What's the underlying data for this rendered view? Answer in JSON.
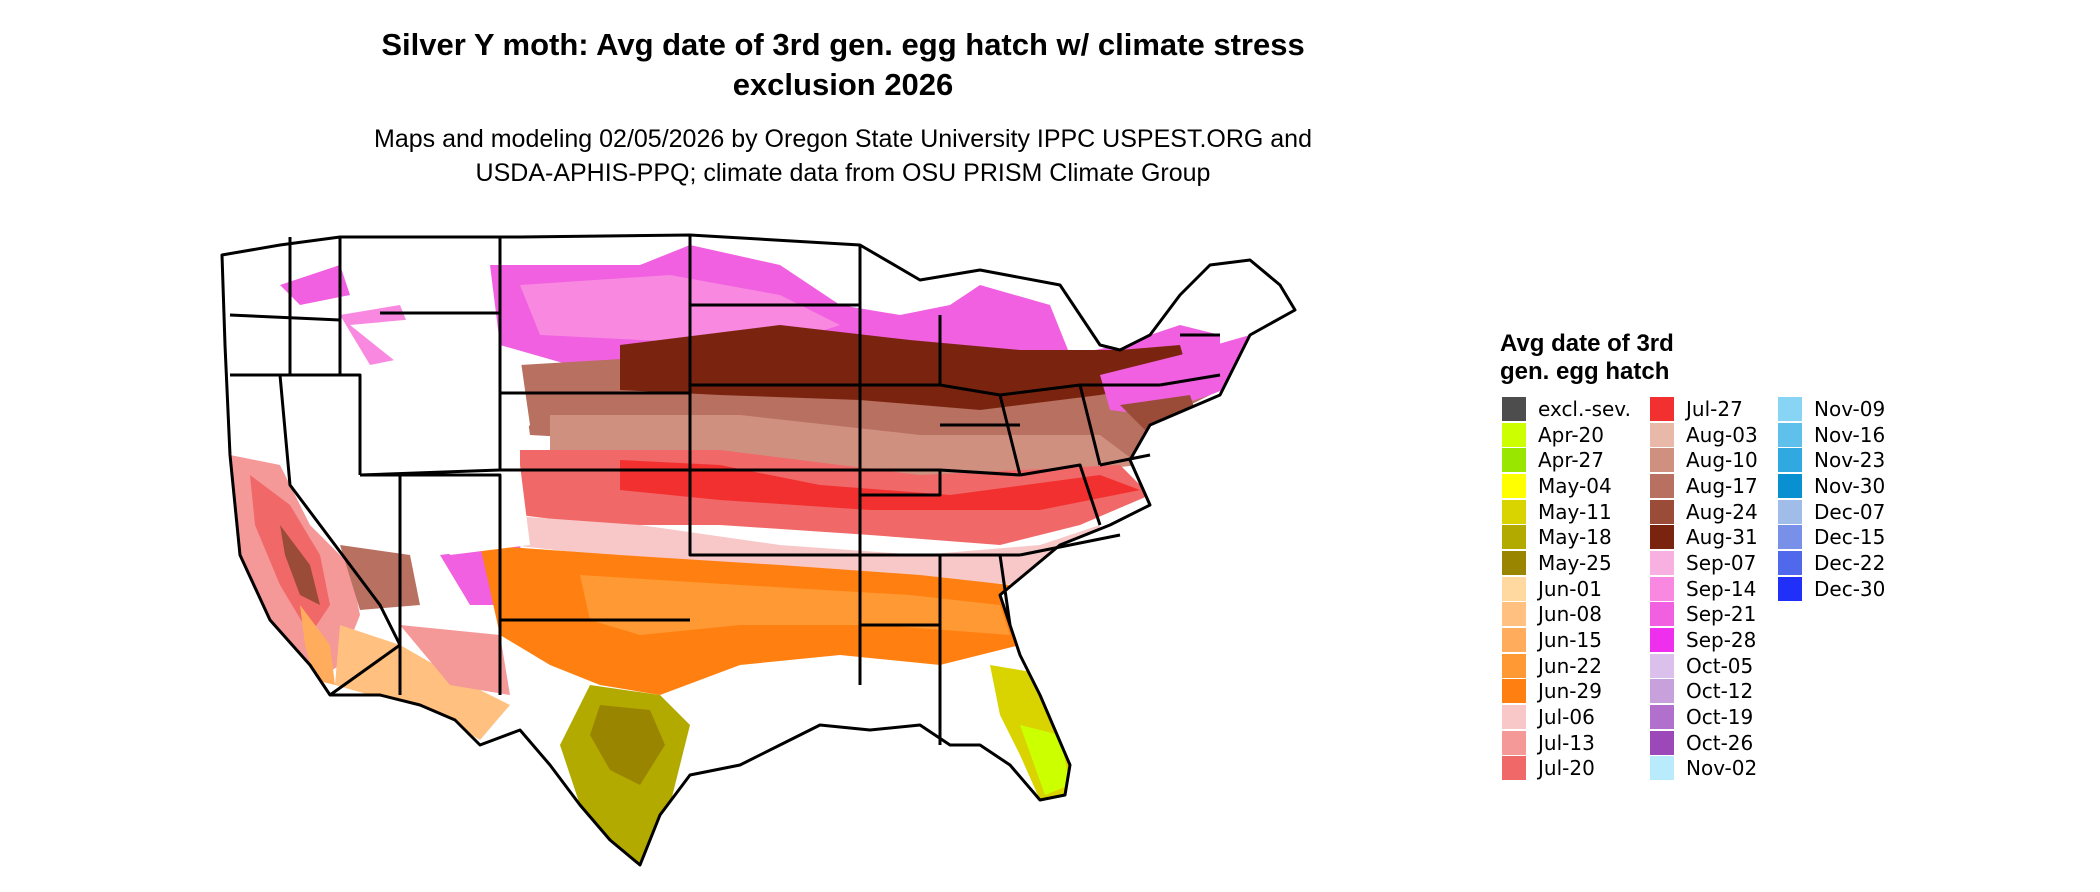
{
  "header": {
    "title_line1": "Silver Y moth: Avg date of 3rd gen. egg hatch w/ climate stress",
    "title_line2": "exclusion 2026",
    "subtitle_line1": "Maps and modeling 02/05/2026 by Oregon State University IPPC USPEST.ORG and",
    "subtitle_line2": "USDA-APHIS-PPQ; climate data from OSU PRISM Climate Group"
  },
  "legend": {
    "title_line1": "Avg date of 3rd",
    "title_line2": "gen. egg hatch",
    "col1": [
      {
        "label": "excl.-sev.",
        "color": "#4d4d4d"
      },
      {
        "label": "Apr-20",
        "color": "#ccff00"
      },
      {
        "label": "Apr-27",
        "color": "#99e600"
      },
      {
        "label": "May-04",
        "color": "#ffff00"
      },
      {
        "label": "May-11",
        "color": "#d9d400"
      },
      {
        "label": "May-18",
        "color": "#b3aa00"
      },
      {
        "label": "May-25",
        "color": "#998500"
      },
      {
        "label": "Jun-01",
        "color": "#ffd9a0"
      },
      {
        "label": "Jun-08",
        "color": "#ffc080"
      },
      {
        "label": "Jun-15",
        "color": "#ffad5c"
      },
      {
        "label": "Jun-22",
        "color": "#ff9933"
      },
      {
        "label": "Jun-29",
        "color": "#ff8010"
      },
      {
        "label": "Jul-06",
        "color": "#f8c8c8"
      },
      {
        "label": "Jul-13",
        "color": "#f49898"
      },
      {
        "label": "Jul-20",
        "color": "#f06868"
      }
    ],
    "col2": [
      {
        "label": "Jul-27",
        "color": "#f23030"
      },
      {
        "label": "Aug-03",
        "color": "#e8b8a8"
      },
      {
        "label": "Aug-10",
        "color": "#d09080"
      },
      {
        "label": "Aug-17",
        "color": "#b87060"
      },
      {
        "label": "Aug-24",
        "color": "#9a4c38"
      },
      {
        "label": "Aug-31",
        "color": "#7a2410"
      },
      {
        "label": "Sep-07",
        "color": "#f8b0e0"
      },
      {
        "label": "Sep-14",
        "color": "#f888e0"
      },
      {
        "label": "Sep-21",
        "color": "#f060e0"
      },
      {
        "label": "Sep-28",
        "color": "#ee30ee"
      },
      {
        "label": "Oct-05",
        "color": "#dcc0ec"
      },
      {
        "label": "Oct-12",
        "color": "#c8a0dc"
      },
      {
        "label": "Oct-19",
        "color": "#b070cc"
      },
      {
        "label": "Oct-26",
        "color": "#9c48b8"
      },
      {
        "label": "Nov-02",
        "color": "#b8ecfc"
      }
    ],
    "col3": [
      {
        "label": "Nov-09",
        "color": "#88d4f4"
      },
      {
        "label": "Nov-16",
        "color": "#60c0ec"
      },
      {
        "label": "Nov-23",
        "color": "#30a8e0"
      },
      {
        "label": "Nov-30",
        "color": "#0890d0"
      },
      {
        "label": "Dec-07",
        "color": "#a0bce8"
      },
      {
        "label": "Dec-15",
        "color": "#7890e8"
      },
      {
        "label": "Dec-22",
        "color": "#5068ec"
      },
      {
        "label": "Dec-30",
        "color": "#2030f8"
      }
    ]
  }
}
